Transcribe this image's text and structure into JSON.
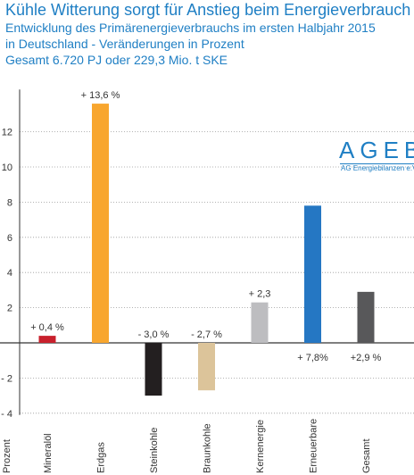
{
  "header": {
    "title": "Kühle Witterung sorgt für Anstieg beim Energieverbrauch",
    "subtitle1": "Entwicklung des Primärenergieverbrauchs im ersten Halbjahr 2015",
    "subtitle2": "in Deutschland - Veränderungen in Prozent",
    "subtitle3": "Gesamt 6.720 PJ oder 229,3 Mio. t SKE"
  },
  "logo": {
    "name": "AGEB",
    "subtitle": "AG Energiebilanzen e.V."
  },
  "chart_data": {
    "type": "bar",
    "ylabel": "Prozent",
    "ylim": [
      -4,
      14
    ],
    "yticks": [
      -4,
      -2,
      0,
      2,
      4,
      6,
      8,
      10,
      12
    ],
    "ytick_labels": [
      "- 4",
      "- 2",
      "",
      "2",
      "4",
      "6",
      "8",
      "10",
      "12"
    ],
    "grid": true,
    "categories": [
      "Mineralöl",
      "Erdgas",
      "Steinkohle",
      "Braunkohle",
      "Kernenergie",
      "Erneuerbare",
      "Gesamt"
    ],
    "values": [
      0.4,
      13.6,
      -3.0,
      -2.7,
      2.3,
      7.8,
      2.9
    ],
    "value_labels": [
      "+ 0,4 %",
      "+ 13,6 %",
      "- 3,0 %",
      "- 2,7 %",
      "+ 2,3",
      "+ 7,8%",
      "+2,9 %"
    ],
    "label_positions": [
      "above",
      "above",
      "above",
      "above",
      "above",
      "below",
      "below"
    ],
    "colors": [
      "#c8202c",
      "#f8a62e",
      "#231f20",
      "#dcc49a",
      "#bdbdc0",
      "#2577c3",
      "#58585a"
    ]
  }
}
